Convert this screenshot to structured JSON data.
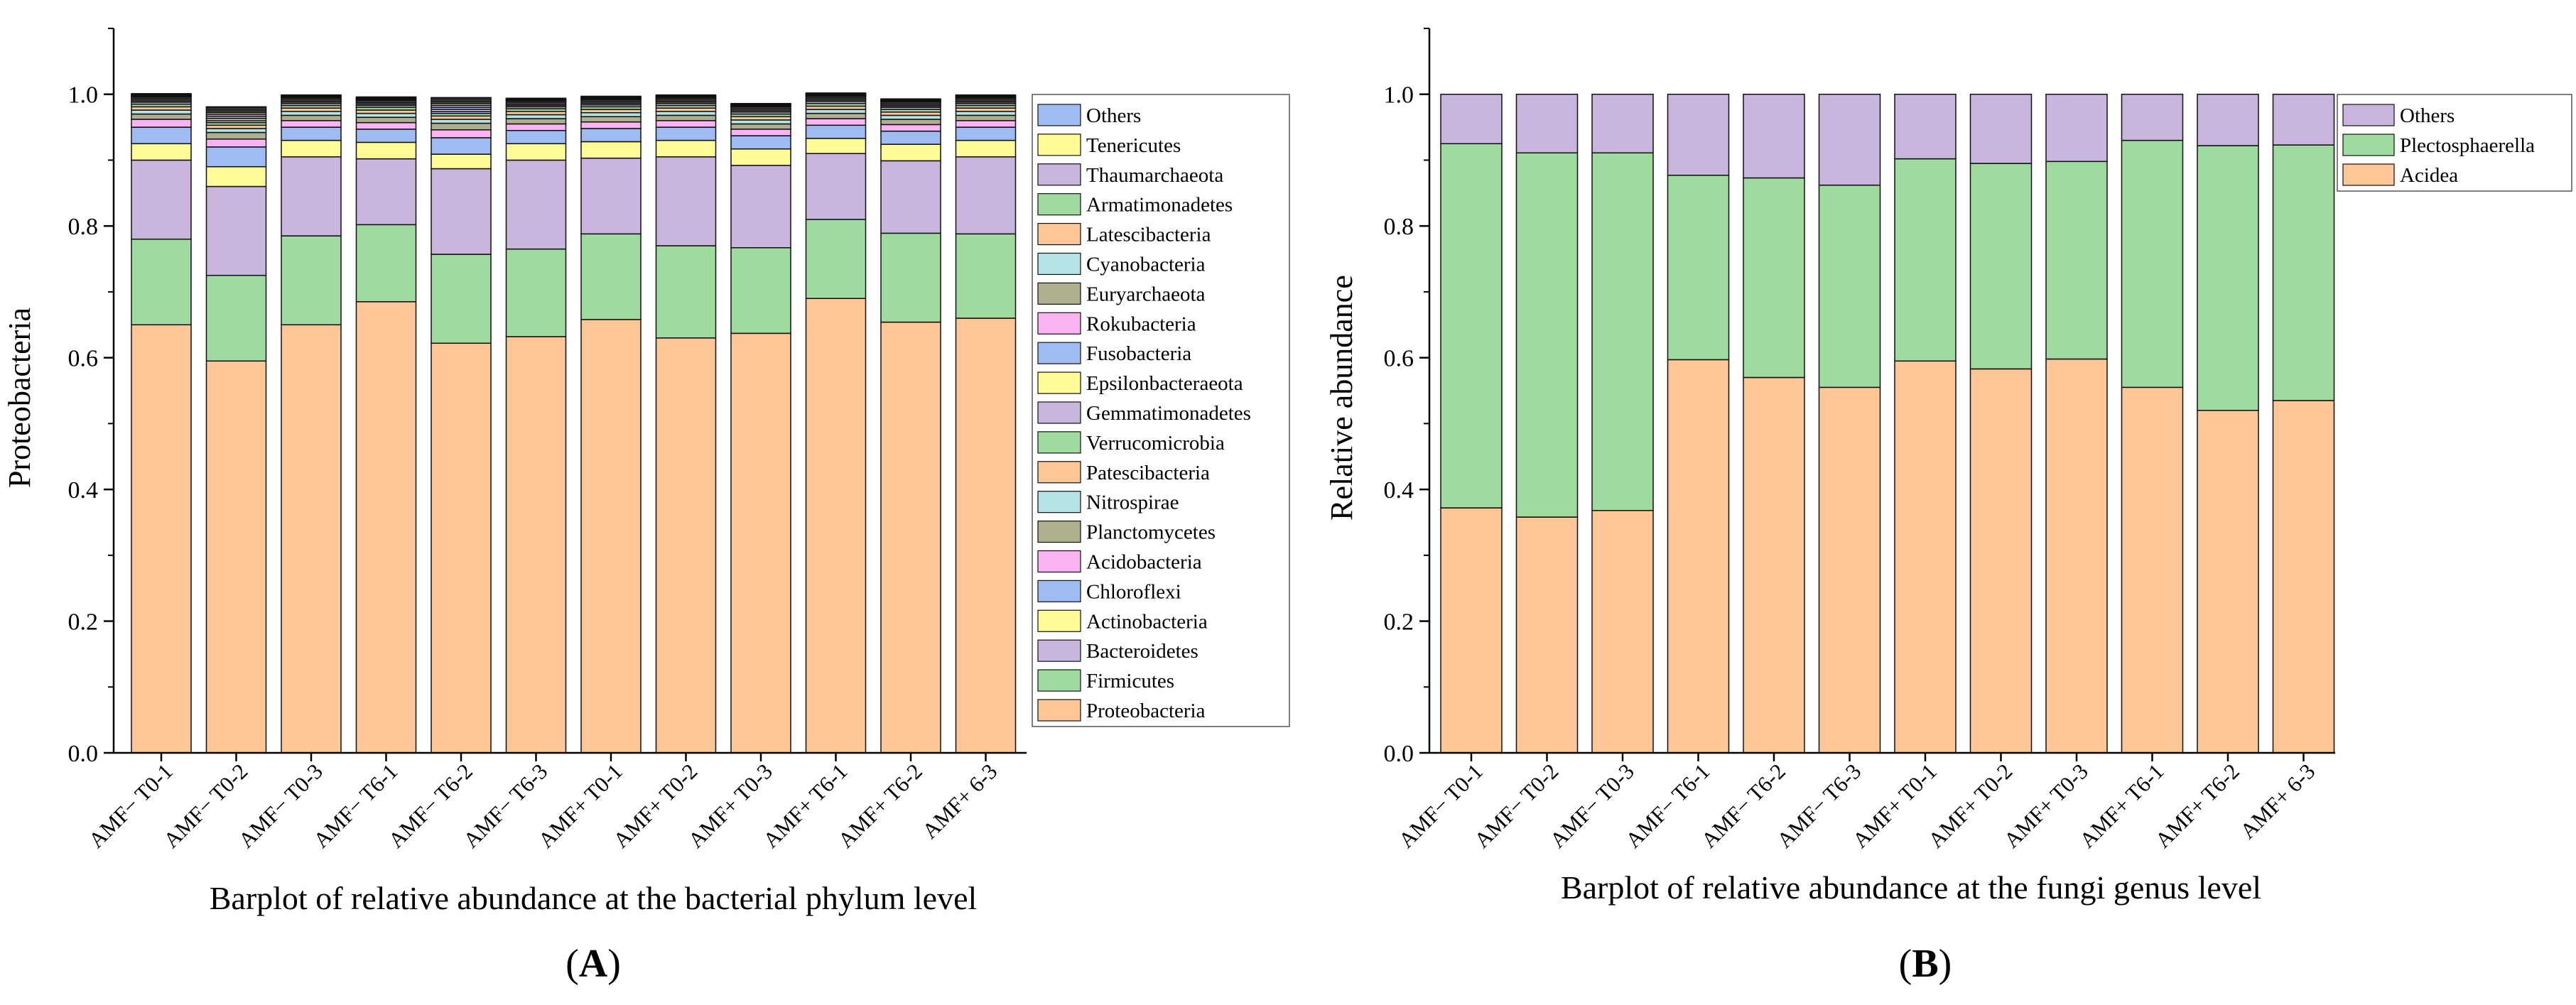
{
  "chart_data": [
    {
      "type": "bar",
      "stacked": true,
      "panel_label": "(A)",
      "panel_letter": "A",
      "caption": "Barplot of relative abundance at the bacterial phylum level",
      "ylabel": "Proteobacteria",
      "xlabel": "",
      "ylim": [
        0,
        1.1
      ],
      "yticks": [
        "0.0",
        "0.2",
        "0.4",
        "0.6",
        "0.8",
        "1.0"
      ],
      "legend_position": "right",
      "categories": [
        "AMF− T0-1",
        "AMF− T0-2",
        "AMF− T0-3",
        "AMF− T6-1",
        "AMF− T6-2",
        "AMF− T6-3",
        "AMF+ T0-1",
        "AMF+ T0-2",
        "AMF+ T0-3",
        "AMF+ T6-1",
        "AMF+ T6-2",
        "AMF+ 6-3"
      ],
      "series": [
        {
          "name": "Proteobacteria",
          "color": "#fcc697",
          "values": [
            0.65,
            0.595,
            0.65,
            0.685,
            0.622,
            0.632,
            0.658,
            0.63,
            0.637,
            0.69,
            0.654,
            0.66
          ]
        },
        {
          "name": "Firmicutes",
          "color": "#9fdb9f",
          "values": [
            0.13,
            0.13,
            0.135,
            0.117,
            0.135,
            0.133,
            0.13,
            0.14,
            0.13,
            0.12,
            0.135,
            0.128
          ]
        },
        {
          "name": "Bacteroidetes",
          "color": "#c9b5de",
          "values": [
            0.12,
            0.135,
            0.12,
            0.1,
            0.13,
            0.135,
            0.115,
            0.135,
            0.125,
            0.1,
            0.11,
            0.117
          ]
        },
        {
          "name": "Actinobacteria",
          "color": "#fffb96",
          "values": [
            0.025,
            0.03,
            0.025,
            0.025,
            0.022,
            0.025,
            0.025,
            0.025,
            0.025,
            0.023,
            0.025,
            0.025
          ]
        },
        {
          "name": "Chloroflexi",
          "color": "#9ebcf2",
          "values": [
            0.025,
            0.03,
            0.02,
            0.02,
            0.025,
            0.02,
            0.02,
            0.02,
            0.02,
            0.02,
            0.02,
            0.02
          ]
        },
        {
          "name": "Acidobacteria",
          "color": "#fab4f3",
          "values": [
            0.012,
            0.012,
            0.01,
            0.01,
            0.012,
            0.01,
            0.01,
            0.01,
            0.01,
            0.01,
            0.01,
            0.01
          ]
        },
        {
          "name": "Planctomycetes",
          "color": "#aeaf8e",
          "values": [
            0.008,
            0.01,
            0.008,
            0.008,
            0.01,
            0.008,
            0.008,
            0.008,
            0.008,
            0.008,
            0.008,
            0.008
          ]
        },
        {
          "name": "Nitrospirae",
          "color": "#b4e3e6",
          "values": [
            0.006,
            0.006,
            0.006,
            0.006,
            0.006,
            0.006,
            0.006,
            0.006,
            0.006,
            0.006,
            0.006,
            0.006
          ]
        },
        {
          "name": "Patescibacteria",
          "color": "#fcc697",
          "values": [
            0.005,
            0.005,
            0.005,
            0.005,
            0.005,
            0.005,
            0.005,
            0.005,
            0.005,
            0.005,
            0.005,
            0.005
          ]
        },
        {
          "name": "Verrucomicrobia",
          "color": "#9fdb9f",
          "values": [
            0.004,
            0.004,
            0.004,
            0.004,
            0.004,
            0.004,
            0.004,
            0.004,
            0.004,
            0.004,
            0.004,
            0.004
          ]
        },
        {
          "name": "Gemmatimonadetes",
          "color": "#c9b5de",
          "values": [
            0.003,
            0.003,
            0.003,
            0.003,
            0.003,
            0.003,
            0.003,
            0.003,
            0.003,
            0.003,
            0.003,
            0.003
          ]
        },
        {
          "name": "Epsilonbacteraeota",
          "color": "#fffb96",
          "values": [
            0.002,
            0.003,
            0.002,
            0.002,
            0.003,
            0.002,
            0.002,
            0.002,
            0.002,
            0.002,
            0.002,
            0.002
          ]
        },
        {
          "name": "Fusobacteria",
          "color": "#9ebcf2",
          "values": [
            0.002,
            0.003,
            0.002,
            0.002,
            0.003,
            0.002,
            0.002,
            0.002,
            0.002,
            0.002,
            0.002,
            0.002
          ]
        },
        {
          "name": "Rokubacteria",
          "color": "#fab4f3",
          "values": [
            0.002,
            0.003,
            0.002,
            0.002,
            0.003,
            0.002,
            0.002,
            0.002,
            0.002,
            0.002,
            0.002,
            0.002
          ]
        },
        {
          "name": "Euryarchaeota",
          "color": "#aeaf8e",
          "values": [
            0.002,
            0.003,
            0.002,
            0.002,
            0.003,
            0.002,
            0.002,
            0.002,
            0.002,
            0.002,
            0.002,
            0.002
          ]
        },
        {
          "name": "Cyanobacteria",
          "color": "#b4e3e6",
          "values": [
            0.001,
            0.002,
            0.001,
            0.001,
            0.002,
            0.001,
            0.001,
            0.001,
            0.001,
            0.001,
            0.001,
            0.001
          ]
        },
        {
          "name": "Latescibacteria",
          "color": "#fcc697",
          "values": [
            0.001,
            0.002,
            0.001,
            0.001,
            0.002,
            0.001,
            0.001,
            0.001,
            0.001,
            0.001,
            0.001,
            0.001
          ]
        },
        {
          "name": "Armatimonadetes",
          "color": "#9fdb9f",
          "values": [
            0.001,
            0.002,
            0.001,
            0.001,
            0.002,
            0.001,
            0.001,
            0.001,
            0.001,
            0.001,
            0.001,
            0.001
          ]
        },
        {
          "name": "Thaumarchaeota",
          "color": "#c9b5de",
          "values": [
            0.001,
            0.002,
            0.001,
            0.001,
            0.002,
            0.001,
            0.001,
            0.001,
            0.001,
            0.001,
            0.001,
            0.001
          ]
        },
        {
          "name": "Tenericutes",
          "color": "#fffb96",
          "values": [
            0.001,
            0.001,
            0.001,
            0.001,
            0.001,
            0.001,
            0.001,
            0.001,
            0.001,
            0.001,
            0.001,
            0.001
          ]
        },
        {
          "name": "Others",
          "color": "#9ebcf2",
          "values": [
            0.0,
            0.0,
            0.0,
            0.0,
            0.0,
            0.0,
            0.0,
            0.0,
            0.0,
            0.0,
            0.0,
            0.0
          ]
        }
      ]
    },
    {
      "type": "bar",
      "stacked": true,
      "panel_label": "(B)",
      "panel_letter": "B",
      "caption": "Barplot of relative abundance at the fungi genus level",
      "ylabel": "Relative abundance",
      "xlabel": "",
      "ylim": [
        0,
        1.1
      ],
      "yticks": [
        "0.0",
        "0.2",
        "0.4",
        "0.6",
        "0.8",
        "1.0"
      ],
      "legend_position": "top-right",
      "categories": [
        "AMF− T0-1",
        "AMF− T0-2",
        "AMF− T0-3",
        "AMF− T6-1",
        "AMF− T6-2",
        "AMF− T6-3",
        "AMF+ T0-1",
        "AMF+ T0-2",
        "AMF+ T0-3",
        "AMF+ T6-1",
        "AMF+ T6-2",
        "AMF+ 6-3"
      ],
      "series": [
        {
          "name": "Acidea",
          "color": "#fcc697",
          "values": [
            0.372,
            0.358,
            0.368,
            0.597,
            0.57,
            0.555,
            0.595,
            0.583,
            0.598,
            0.555,
            0.52,
            0.535
          ]
        },
        {
          "name": "Plectosphaerella",
          "color": "#9fdb9f",
          "values": [
            0.553,
            0.553,
            0.543,
            0.28,
            0.303,
            0.307,
            0.307,
            0.312,
            0.3,
            0.375,
            0.402,
            0.388
          ]
        },
        {
          "name": "Others",
          "color": "#c9b5de",
          "values": [
            0.075,
            0.089,
            0.089,
            0.123,
            0.127,
            0.138,
            0.098,
            0.105,
            0.102,
            0.07,
            0.078,
            0.077
          ]
        }
      ]
    }
  ]
}
